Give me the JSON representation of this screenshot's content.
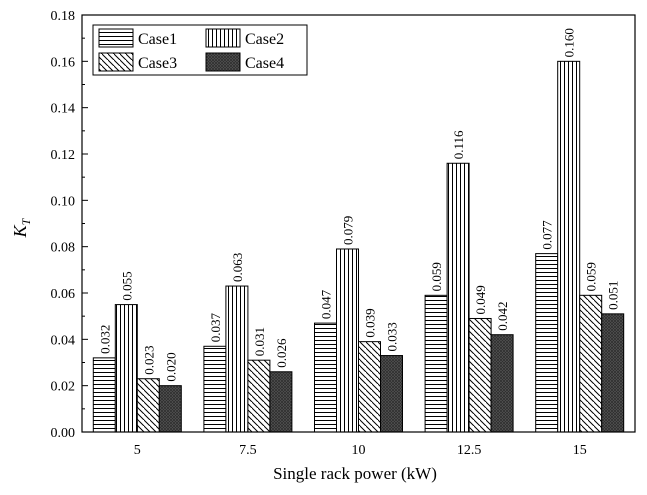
{
  "chart_data": {
    "type": "bar",
    "title": "",
    "xlabel": "Single rack power (kW)",
    "ylabel_main": "K",
    "ylabel_sub": "T",
    "categories": [
      "5",
      "7.5",
      "10",
      "12.5",
      "15"
    ],
    "ylim": [
      0,
      0.18
    ],
    "yticks": [
      "0.00",
      "0.02",
      "0.04",
      "0.06",
      "0.08",
      "0.10",
      "0.12",
      "0.14",
      "0.16",
      "0.18"
    ],
    "grid": false,
    "legend_position": "top-left",
    "series": [
      {
        "name": "Case1",
        "pattern": "horizontal-lines",
        "values": [
          0.032,
          0.037,
          0.047,
          0.059,
          0.077
        ],
        "labels": [
          "0.032",
          "0.037",
          "0.047",
          "0.059",
          "0.077"
        ]
      },
      {
        "name": "Case2",
        "pattern": "vertical-lines",
        "values": [
          0.055,
          0.063,
          0.079,
          0.116,
          0.16
        ],
        "labels": [
          "0.055",
          "0.063",
          "0.079",
          "0.116",
          "0.160"
        ]
      },
      {
        "name": "Case3",
        "pattern": "diagonal-lines",
        "values": [
          0.023,
          0.031,
          0.039,
          0.049,
          0.059
        ],
        "labels": [
          "0.023",
          "0.031",
          "0.039",
          "0.049",
          "0.059"
        ]
      },
      {
        "name": "Case4",
        "pattern": "dark-crosshatch",
        "values": [
          0.02,
          0.026,
          0.033,
          0.042,
          0.051
        ],
        "labels": [
          "0.020",
          "0.026",
          "0.033",
          "0.042",
          "0.051"
        ]
      }
    ]
  }
}
